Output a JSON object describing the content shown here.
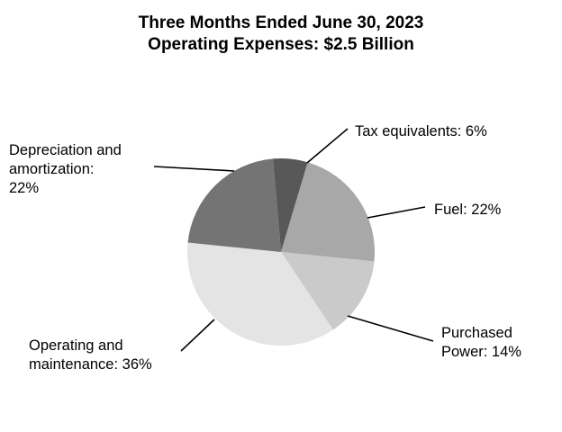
{
  "chart_data": {
    "type": "pie",
    "title": "Three Months Ended June 30, 2023",
    "subtitle": "Operating Expenses: $2.5 Billion",
    "slices": [
      {
        "label": "Tax equivalents",
        "value": 6,
        "display": "Tax equivalents: 6%",
        "color": "#585858"
      },
      {
        "label": "Fuel",
        "value": 22,
        "display": "Fuel: 22%",
        "color": "#a8a8a8"
      },
      {
        "label": "Purchased Power",
        "value": 14,
        "display": "Purchased Power: 14%",
        "color": "#cacaca",
        "label_lines": [
          "Purchased",
          "Power: 14%"
        ]
      },
      {
        "label": "Operating and maintenance",
        "value": 36,
        "display": "Operating and maintenance: 36%",
        "color": "#e4e4e4",
        "label_lines": [
          "Operating and",
          "maintenance: 36%"
        ]
      },
      {
        "label": "Depreciation and amortization",
        "value": 22,
        "display": "Depreciation and amortization: 22%",
        "color": "#747474",
        "label_lines": [
          "Depreciation and",
          "amortization:",
          "22%"
        ]
      }
    ]
  }
}
